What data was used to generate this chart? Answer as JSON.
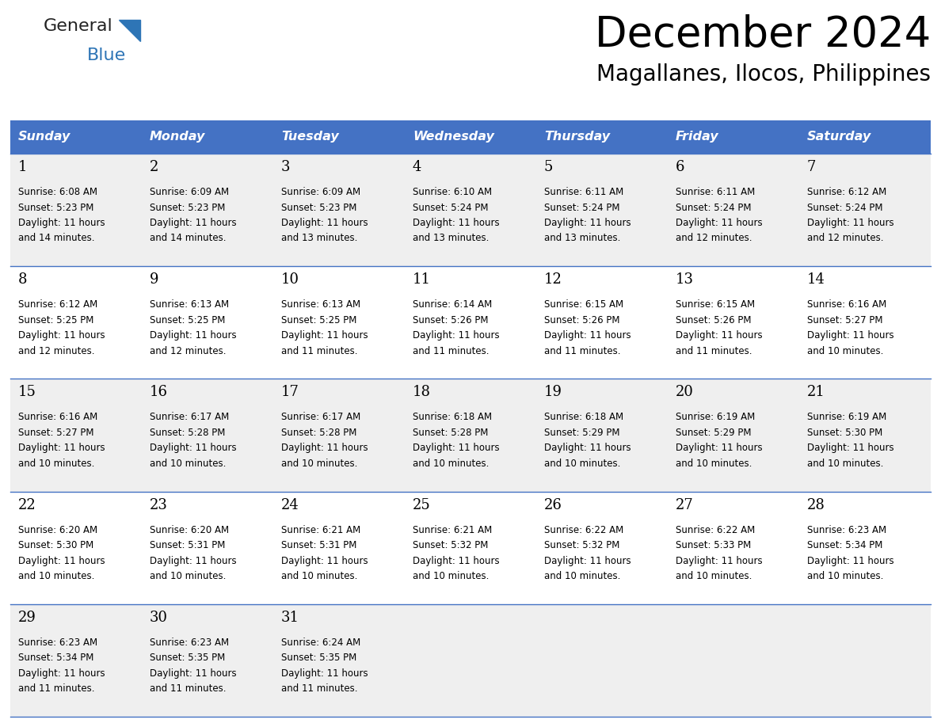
{
  "title": "December 2024",
  "subtitle": "Magallanes, Ilocos, Philippines",
  "header_color": "#4472C4",
  "header_text_color": "#FFFFFF",
  "day_names": [
    "Sunday",
    "Monday",
    "Tuesday",
    "Wednesday",
    "Thursday",
    "Friday",
    "Saturday"
  ],
  "bg_color": "#FFFFFF",
  "cell_bg_even": "#EFEFEF",
  "cell_bg_odd": "#FFFFFF",
  "row_line_color": "#4472C4",
  "text_color": "#000000",
  "logo_general_color": "#1a1a1a",
  "logo_blue_color": "#2E75B6",
  "calendar": [
    [
      {
        "day": 1,
        "sunrise": "6:08 AM",
        "sunset": "5:23 PM",
        "daylight": "11 hours and 14 minutes."
      },
      {
        "day": 2,
        "sunrise": "6:09 AM",
        "sunset": "5:23 PM",
        "daylight": "11 hours and 14 minutes."
      },
      {
        "day": 3,
        "sunrise": "6:09 AM",
        "sunset": "5:23 PM",
        "daylight": "11 hours and 13 minutes."
      },
      {
        "day": 4,
        "sunrise": "6:10 AM",
        "sunset": "5:24 PM",
        "daylight": "11 hours and 13 minutes."
      },
      {
        "day": 5,
        "sunrise": "6:11 AM",
        "sunset": "5:24 PM",
        "daylight": "11 hours and 13 minutes."
      },
      {
        "day": 6,
        "sunrise": "6:11 AM",
        "sunset": "5:24 PM",
        "daylight": "11 hours and 12 minutes."
      },
      {
        "day": 7,
        "sunrise": "6:12 AM",
        "sunset": "5:24 PM",
        "daylight": "11 hours and 12 minutes."
      }
    ],
    [
      {
        "day": 8,
        "sunrise": "6:12 AM",
        "sunset": "5:25 PM",
        "daylight": "11 hours and 12 minutes."
      },
      {
        "day": 9,
        "sunrise": "6:13 AM",
        "sunset": "5:25 PM",
        "daylight": "11 hours and 12 minutes."
      },
      {
        "day": 10,
        "sunrise": "6:13 AM",
        "sunset": "5:25 PM",
        "daylight": "11 hours and 11 minutes."
      },
      {
        "day": 11,
        "sunrise": "6:14 AM",
        "sunset": "5:26 PM",
        "daylight": "11 hours and 11 minutes."
      },
      {
        "day": 12,
        "sunrise": "6:15 AM",
        "sunset": "5:26 PM",
        "daylight": "11 hours and 11 minutes."
      },
      {
        "day": 13,
        "sunrise": "6:15 AM",
        "sunset": "5:26 PM",
        "daylight": "11 hours and 11 minutes."
      },
      {
        "day": 14,
        "sunrise": "6:16 AM",
        "sunset": "5:27 PM",
        "daylight": "11 hours and 10 minutes."
      }
    ],
    [
      {
        "day": 15,
        "sunrise": "6:16 AM",
        "sunset": "5:27 PM",
        "daylight": "11 hours and 10 minutes."
      },
      {
        "day": 16,
        "sunrise": "6:17 AM",
        "sunset": "5:28 PM",
        "daylight": "11 hours and 10 minutes."
      },
      {
        "day": 17,
        "sunrise": "6:17 AM",
        "sunset": "5:28 PM",
        "daylight": "11 hours and 10 minutes."
      },
      {
        "day": 18,
        "sunrise": "6:18 AM",
        "sunset": "5:28 PM",
        "daylight": "11 hours and 10 minutes."
      },
      {
        "day": 19,
        "sunrise": "6:18 AM",
        "sunset": "5:29 PM",
        "daylight": "11 hours and 10 minutes."
      },
      {
        "day": 20,
        "sunrise": "6:19 AM",
        "sunset": "5:29 PM",
        "daylight": "11 hours and 10 minutes."
      },
      {
        "day": 21,
        "sunrise": "6:19 AM",
        "sunset": "5:30 PM",
        "daylight": "11 hours and 10 minutes."
      }
    ],
    [
      {
        "day": 22,
        "sunrise": "6:20 AM",
        "sunset": "5:30 PM",
        "daylight": "11 hours and 10 minutes."
      },
      {
        "day": 23,
        "sunrise": "6:20 AM",
        "sunset": "5:31 PM",
        "daylight": "11 hours and 10 minutes."
      },
      {
        "day": 24,
        "sunrise": "6:21 AM",
        "sunset": "5:31 PM",
        "daylight": "11 hours and 10 minutes."
      },
      {
        "day": 25,
        "sunrise": "6:21 AM",
        "sunset": "5:32 PM",
        "daylight": "11 hours and 10 minutes."
      },
      {
        "day": 26,
        "sunrise": "6:22 AM",
        "sunset": "5:32 PM",
        "daylight": "11 hours and 10 minutes."
      },
      {
        "day": 27,
        "sunrise": "6:22 AM",
        "sunset": "5:33 PM",
        "daylight": "11 hours and 10 minutes."
      },
      {
        "day": 28,
        "sunrise": "6:23 AM",
        "sunset": "5:34 PM",
        "daylight": "11 hours and 10 minutes."
      }
    ],
    [
      {
        "day": 29,
        "sunrise": "6:23 AM",
        "sunset": "5:34 PM",
        "daylight": "11 hours and 11 minutes."
      },
      {
        "day": 30,
        "sunrise": "6:23 AM",
        "sunset": "5:35 PM",
        "daylight": "11 hours and 11 minutes."
      },
      {
        "day": 31,
        "sunrise": "6:24 AM",
        "sunset": "5:35 PM",
        "daylight": "11 hours and 11 minutes."
      },
      null,
      null,
      null,
      null
    ]
  ]
}
